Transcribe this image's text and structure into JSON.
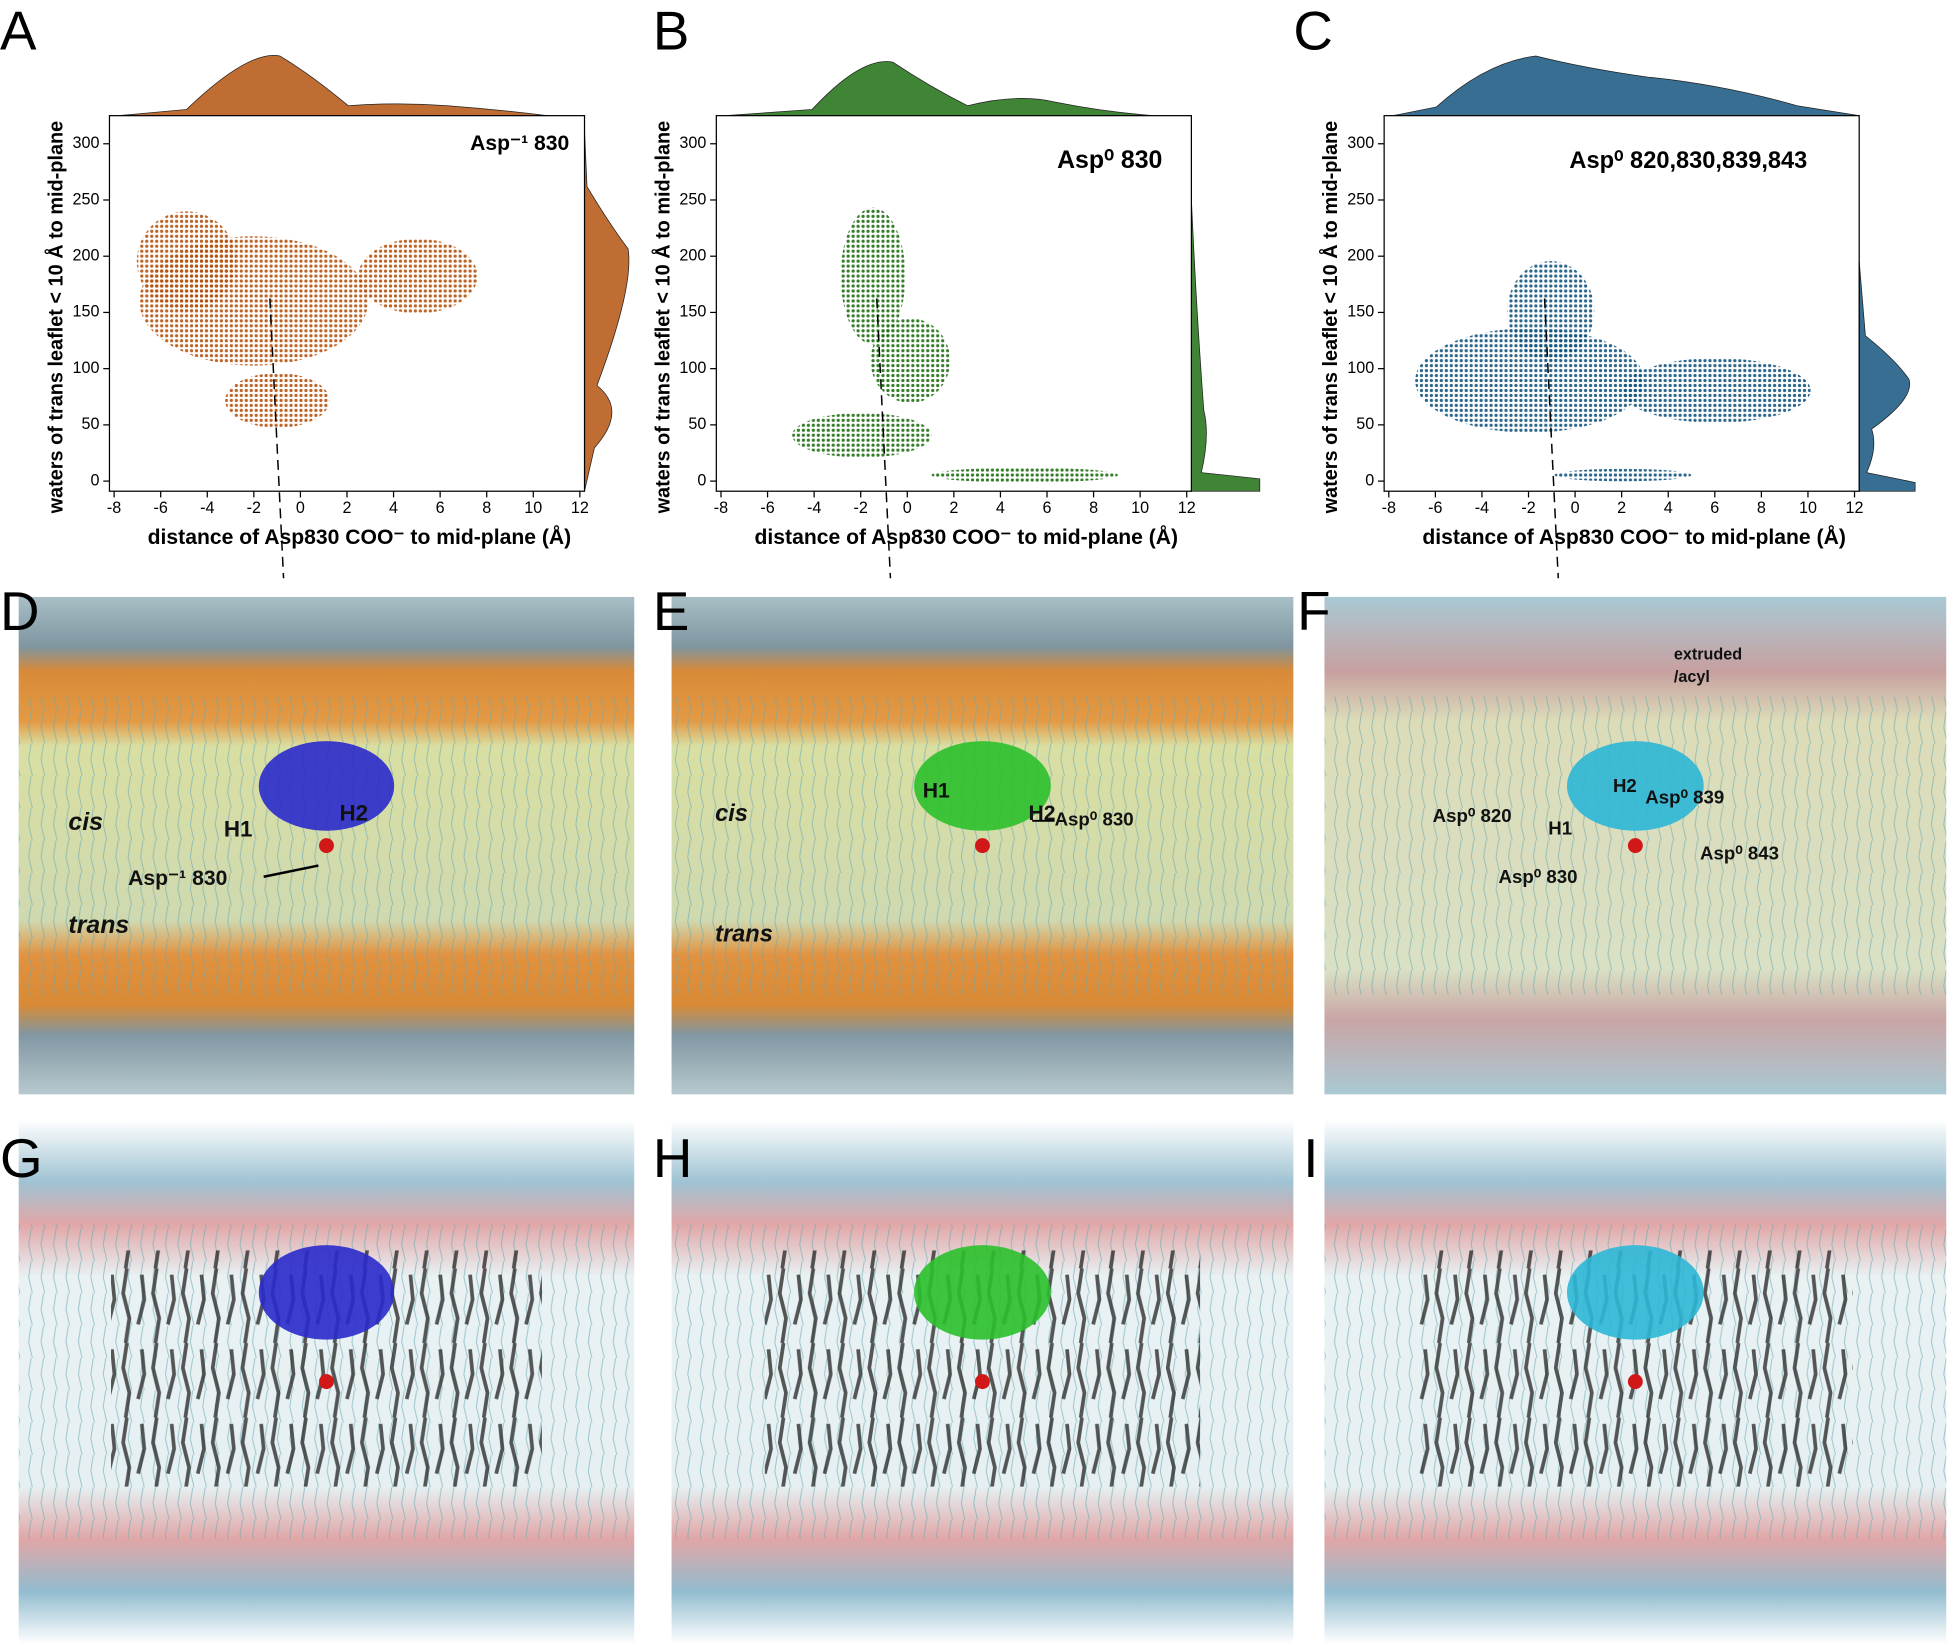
{
  "panels": [
    "A",
    "B",
    "C",
    "D",
    "E",
    "F",
    "G",
    "H",
    "I"
  ],
  "chart_data": [
    {
      "type": "scatter",
      "title": "Asp⁻¹ 830",
      "x_label": "distance of Asp830 COO⁻ to mid-plane (Å)",
      "y_label": "waters of trans leaflet < 10 Å to mid-plane",
      "color": "#b5530f",
      "xlim": [
        -8.2,
        12.2
      ],
      "ylim": [
        -9,
        325
      ],
      "xticks": [
        -8,
        -6,
        -4,
        -2,
        0,
        2,
        4,
        6,
        8,
        10,
        12
      ],
      "yticks": [
        0,
        50,
        100,
        150,
        200,
        250,
        300
      ]
    },
    {
      "type": "scatter",
      "title": "Asp⁰ 830",
      "x_label": "distance of Asp830 COO⁻ to mid-plane (Å)",
      "y_label": "waters of trans leaflet < 10 Å to mid-plane",
      "color": "#1f6e12",
      "xlim": [
        -8.2,
        12.2
      ],
      "ylim": [
        -9,
        325
      ],
      "xticks": [
        -8,
        -6,
        -4,
        -2,
        0,
        2,
        4,
        6,
        8,
        10,
        12
      ],
      "yticks": [
        0,
        50,
        100,
        150,
        200,
        250,
        300
      ]
    },
    {
      "type": "scatter",
      "title": "Asp⁰ 820,830,839,843",
      "x_label": "distance of Asp830 COO⁻ to mid-plane (Å)",
      "y_label": "waters of trans leaflet < 10 Å to mid-plane",
      "color": "#14557e",
      "xlim": [
        -8.2,
        12.2
      ],
      "ylim": [
        -9,
        325
      ],
      "xticks": [
        -8,
        -6,
        -4,
        -2,
        0,
        2,
        4,
        6,
        8,
        10,
        12
      ],
      "yticks": [
        0,
        50,
        100,
        150,
        200,
        250,
        300
      ]
    }
  ],
  "images": [
    {
      "labels": [
        "cis",
        "H1",
        "H2",
        "Asp⁻¹ 830",
        "trans"
      ]
    },
    {
      "labels": [
        "cis",
        "H1",
        "H2",
        "Asp⁰ 830",
        "trans"
      ]
    },
    {
      "labels": [
        "extruded",
        "/acyl",
        "H2",
        "Asp⁰ 839",
        "Asp⁰ 820",
        "H1",
        "Asp⁰ 843",
        "Asp⁰ 830"
      ]
    }
  ]
}
